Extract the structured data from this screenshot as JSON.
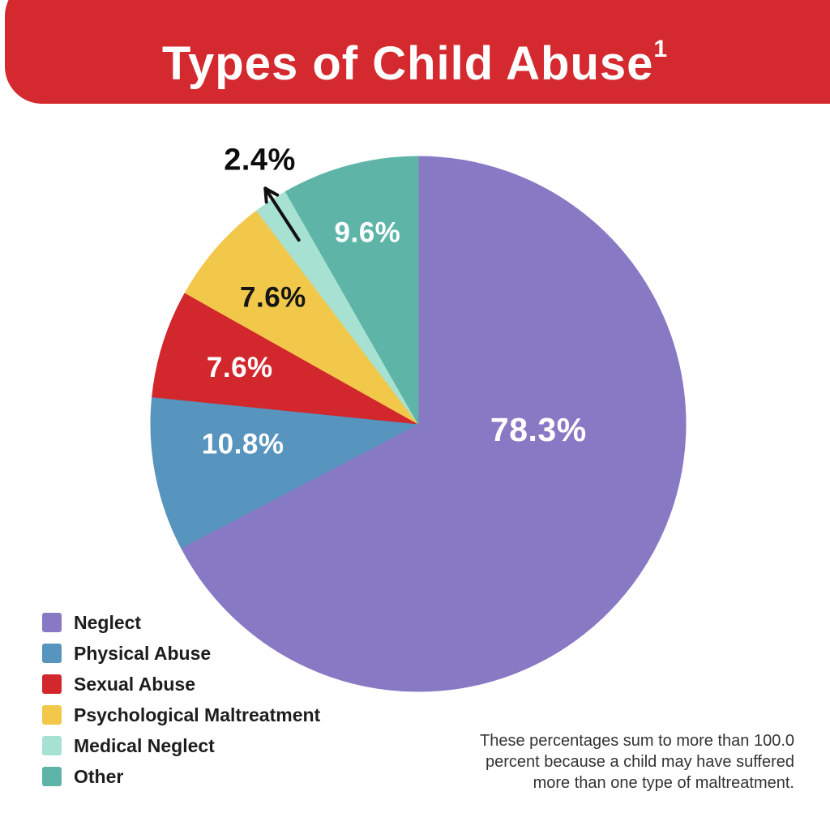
{
  "header": {
    "title": "Types of Child Abuse",
    "superscript": "1",
    "background": "#d4292e",
    "text_color": "#ffffff"
  },
  "chart_data": {
    "type": "pie",
    "title": "Types of Child Abuse",
    "title_footnote_marker": "1",
    "unit": "percent",
    "start_angle_deg": 0,
    "direction": "clockwise",
    "legend_position": "bottom-left",
    "series": [
      {
        "label": "Neglect",
        "value": 78.3,
        "display": "78.3%",
        "color": "#8879c4",
        "label_color": "#ffffff",
        "label_placement": "inside",
        "label_angle_deg": 92.7,
        "label_radius_frac": 0.45
      },
      {
        "label": "Physical Abuse",
        "value": 10.8,
        "display": "10.8%",
        "color": "#5794be",
        "label_color": "#ffffff",
        "label_placement": "inside",
        "label_angle_deg": 263.4,
        "label_radius_frac": 0.66
      },
      {
        "label": "Sexual Abuse",
        "value": 7.6,
        "display": "7.6%",
        "color": "#d2282d",
        "label_color": "#ffffff",
        "label_placement": "inside",
        "label_radius_frac": 0.7
      },
      {
        "label": "Psychological Maltreatment",
        "value": 7.6,
        "display": "7.6%",
        "color": "#f2c84b",
        "label_color": "#151515",
        "label_placement": "inside",
        "label_radius_frac": 0.72
      },
      {
        "label": "Medical Neglect",
        "value": 2.4,
        "display": "2.4%",
        "color": "#a7e1d1",
        "label_color": "#0c0c0c",
        "label_placement": "outside",
        "label_angle_deg": 329,
        "label_radius_frac": 1.15,
        "callout_arrow": {
          "angle_deg": 327,
          "from_radius_frac": 0.82,
          "to_radius_frac": 1.05,
          "color": "#111111"
        }
      },
      {
        "label": "Other",
        "value": 9.6,
        "display": "9.6%",
        "color": "#5eb5a7",
        "label_color": "#ffffff",
        "label_placement": "inside",
        "label_radius_frac": 0.74
      }
    ],
    "note": "These percentages sum to more than 100.0 percent because a child may have suffered more than one type of maltreatment."
  },
  "footnote": {
    "lines": [
      "These percentages sum to more than 100.0",
      "percent because a child may have suffered",
      "more than one type of maltreatment."
    ]
  }
}
